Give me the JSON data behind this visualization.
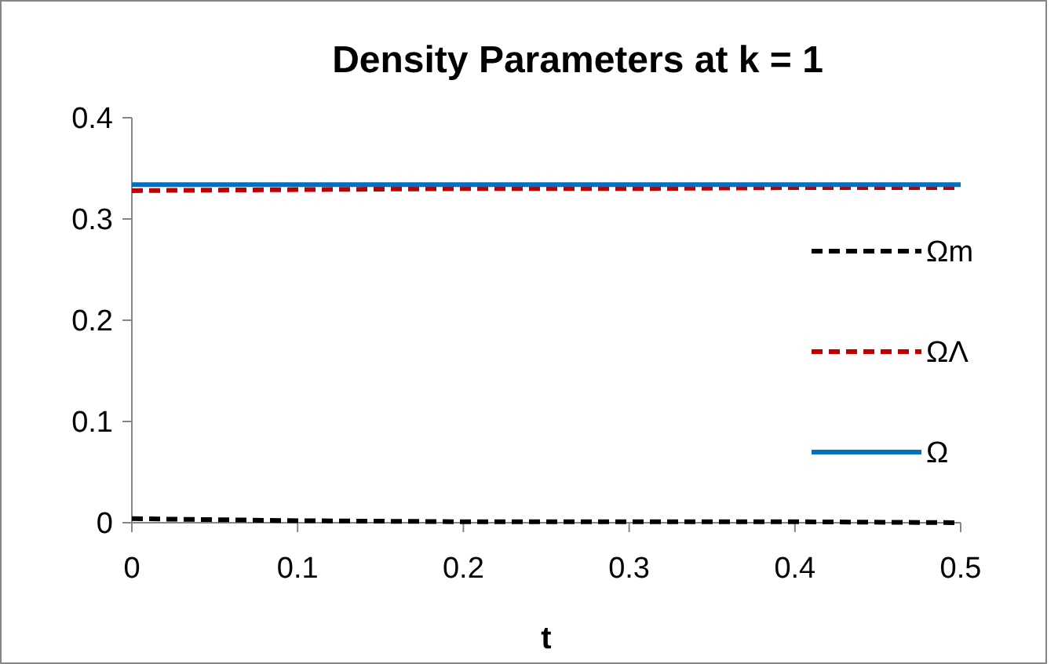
{
  "chart_data": {
    "type": "line",
    "title": "Density Parameters at k = 1",
    "xlabel": "t",
    "x": [
      0,
      0.1,
      0.2,
      0.3,
      0.4,
      0.5
    ],
    "series": [
      {
        "name": "Ωm",
        "color": "#000000",
        "line_style": "dashed",
        "values": [
          0.004,
          0.002,
          0.001,
          0.001,
          0.001,
          0
        ]
      },
      {
        "name": "ΩΛ",
        "color": "#c00000",
        "line_style": "dashed",
        "values": [
          0.328,
          0.329,
          0.33,
          0.33,
          0.331,
          0.331
        ]
      },
      {
        "name": "Ω",
        "color": "#0070c0",
        "line_style": "solid",
        "values": [
          0.334,
          0.334,
          0.334,
          0.334,
          0.334,
          0.334
        ]
      }
    ],
    "xlim": [
      0,
      0.5
    ],
    "xticks": [
      0,
      0.1,
      0.2,
      0.3,
      0.4,
      0.5
    ],
    "ylim": [
      0,
      0.4
    ],
    "yticks": [
      0,
      0.1,
      0.2,
      0.3,
      0.4
    ],
    "grid": false,
    "legend": "right",
    "marker": "none"
  }
}
